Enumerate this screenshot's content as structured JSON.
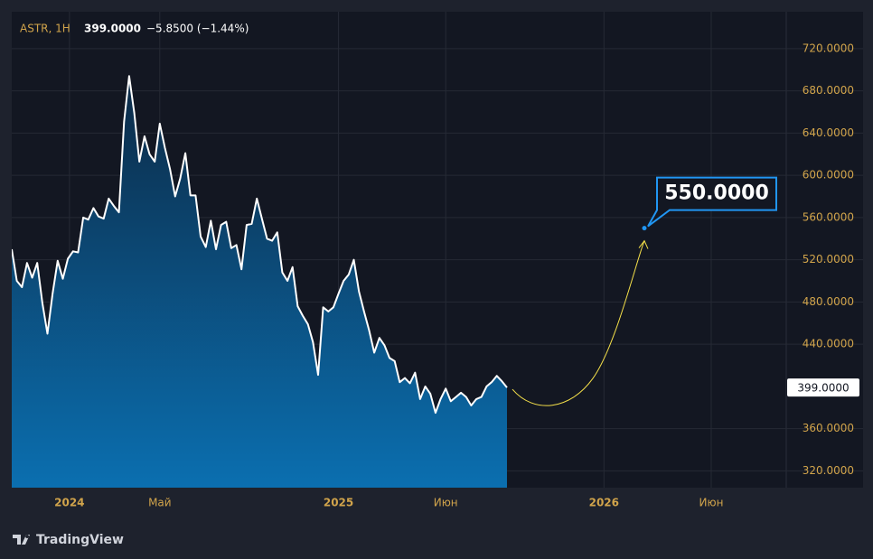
{
  "chart_data": {
    "type": "area",
    "symbol": "ASTR, 1H",
    "change": "−5.8500 (−1.44%)",
    "last": {
      "value": 399,
      "label": "399.0000"
    },
    "target": {
      "value": 550,
      "label": "550.0000"
    },
    "values": [
      530,
      500,
      494,
      517,
      503,
      517,
      479,
      450,
      488,
      519,
      502,
      521,
      528,
      527,
      560,
      558,
      569,
      561,
      559,
      578,
      571,
      565,
      651,
      694,
      659,
      613,
      637,
      620,
      613,
      649,
      626,
      606,
      580,
      597,
      621,
      581,
      581,
      542,
      532,
      557,
      530,
      553,
      556,
      531,
      534,
      511,
      553,
      554,
      578,
      559,
      540,
      538,
      546,
      508,
      500,
      513,
      476,
      467,
      459,
      442,
      411,
      475,
      471,
      475,
      488,
      500,
      506,
      520,
      490,
      471,
      453,
      432,
      446,
      439,
      427,
      424,
      404,
      408,
      403,
      413,
      388,
      400,
      393,
      375,
      388,
      398,
      386,
      390,
      394,
      390,
      382,
      388,
      390,
      400,
      404,
      410,
      405,
      399
    ],
    "color": "#ffffff",
    "xlim": [
      0,
      151.7
    ],
    "xticks": [
      {
        "value": 11.3,
        "label": "2024"
      },
      {
        "value": 29,
        "label": "Май"
      },
      {
        "value": 64,
        "label": "2025"
      },
      {
        "value": 85,
        "label": "Июн"
      },
      {
        "value": 116,
        "label": "2026"
      },
      {
        "value": 137,
        "label": "Июн"
      }
    ],
    "ylim": [
      304.1,
      755
    ],
    "yticks": [
      {
        "value": 320,
        "label": "320.0000"
      },
      {
        "value": 360,
        "label": "360.0000"
      },
      {
        "value": 440,
        "label": "440.0000"
      },
      {
        "value": 480,
        "label": "480.0000"
      },
      {
        "value": 520,
        "label": "520.0000"
      },
      {
        "value": 560,
        "label": "560.0000"
      },
      {
        "value": 600,
        "label": "600.0000"
      },
      {
        "value": 640,
        "label": "640.0000"
      },
      {
        "value": 680,
        "label": "680.0000"
      },
      {
        "value": 720,
        "label": "720.0000"
      }
    ],
    "grid": true,
    "watermark": "TradingView"
  }
}
